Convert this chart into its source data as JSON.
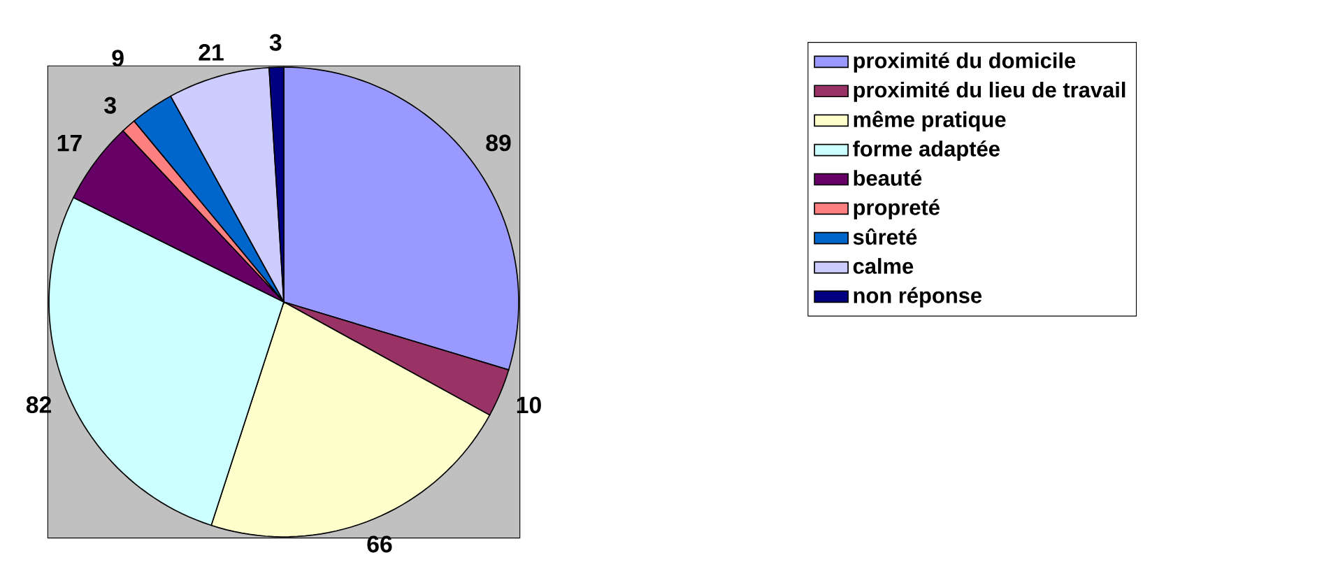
{
  "chart_data": {
    "type": "pie",
    "categories": [
      "proximité du domicile",
      "proximité du lieu de travail",
      "même pratique",
      "forme adaptée",
      "beauté",
      "propreté",
      "sûreté",
      "calme",
      "non réponse"
    ],
    "values": [
      89,
      10,
      66,
      82,
      17,
      3,
      9,
      21,
      3
    ],
    "colors": [
      "#9999ff",
      "#993366",
      "#ffffcc",
      "#ccffff",
      "#660066",
      "#ff8080",
      "#0066cc",
      "#ccccff",
      "#000080"
    ],
    "data_labels": true,
    "legend": "right"
  }
}
